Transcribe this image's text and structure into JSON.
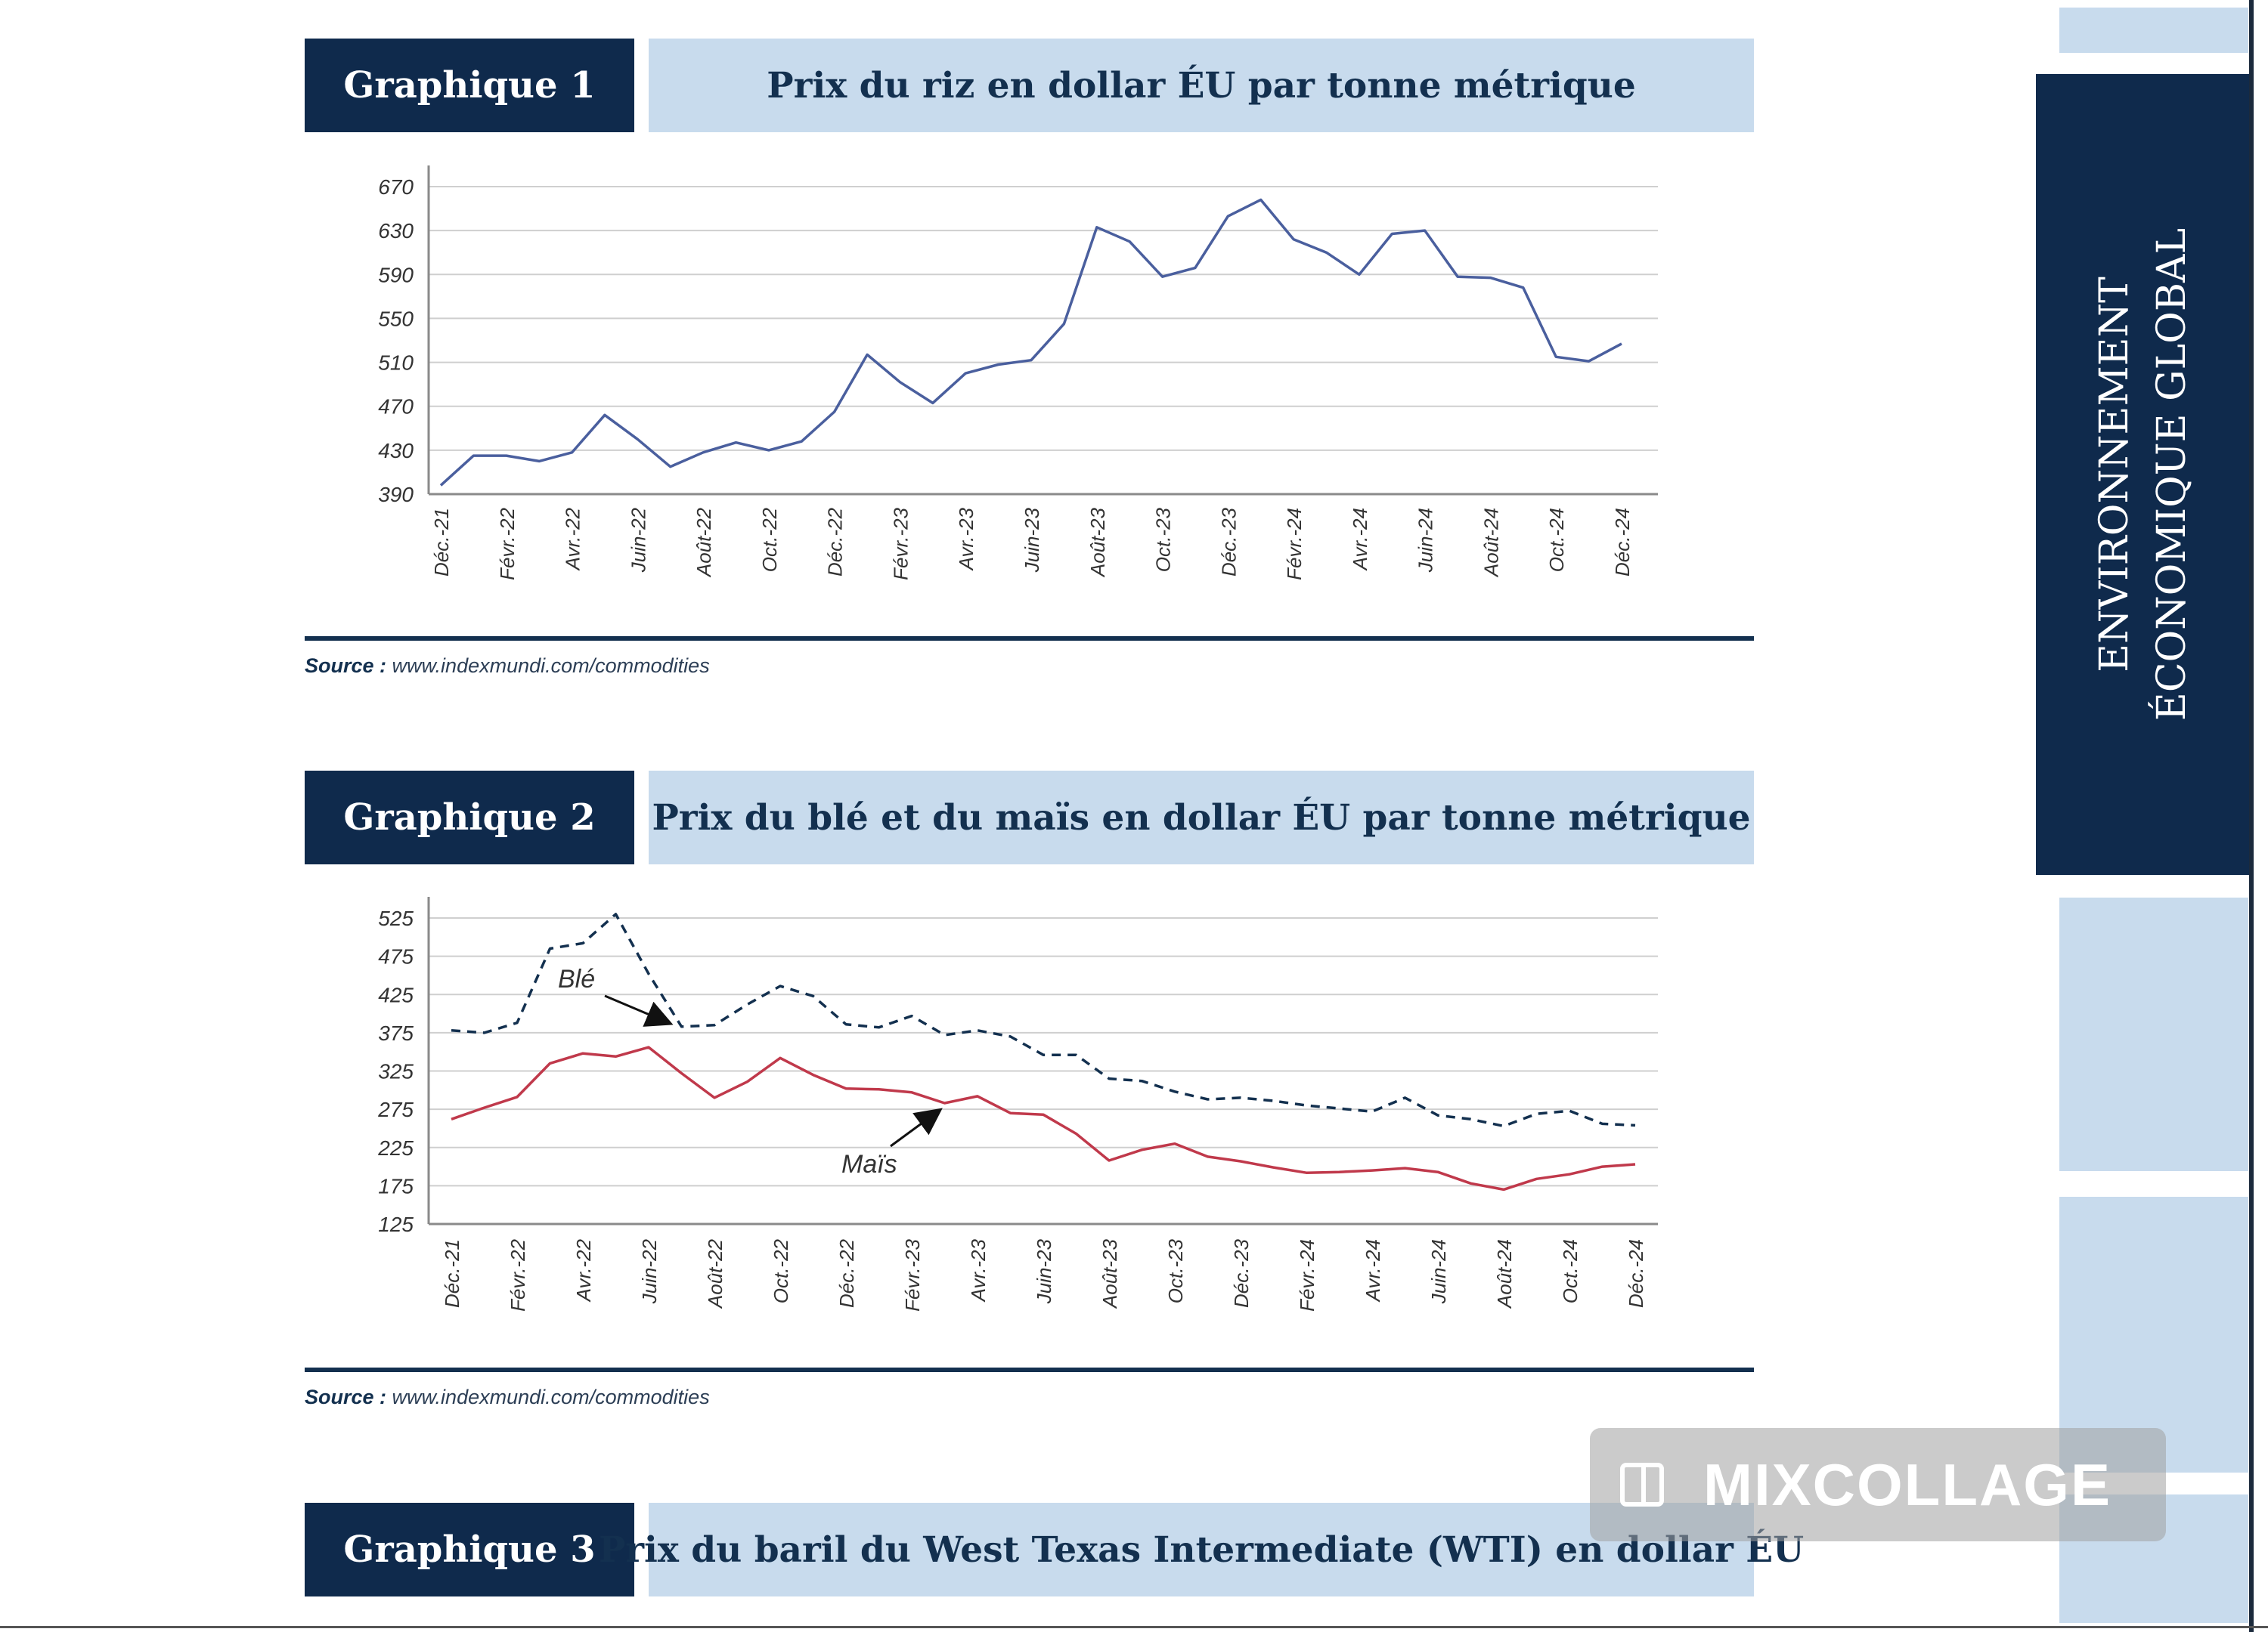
{
  "graphs": [
    {
      "label": "Graphique 1",
      "title": "Prix du riz en dollar ÉU par tonne métrique"
    },
    {
      "label": "Graphique 2",
      "title": "Prix du blé et du maïs en dollar ÉU par tonne métrique"
    },
    {
      "label": "Graphique 3",
      "title": "Prix du baril du West Texas Intermediate (WTI) en dollar ÉU"
    }
  ],
  "source": {
    "label": "Source :",
    "url": "www.indexmundi.com/commodities"
  },
  "sidebar": {
    "line1": "ENVIRONNEMENT",
    "line2": "ÉCONOMIQUE GLOBAL"
  },
  "watermark": {
    "text": "MIXCOLLAGE"
  },
  "chart_data": [
    {
      "type": "line",
      "title": "Prix du riz en dollar ÉU par tonne métrique",
      "x_tick_labels": [
        "Déc.-21",
        "Févr.-22",
        "Avr.-22",
        "Juin-22",
        "Août-22",
        "Oct.-22",
        "Déc.-22",
        "Févr.-23",
        "Avr.-23",
        "Juin-23",
        "Août-23",
        "Oct.-23",
        "Déc.-23",
        "Févr.-24",
        "Avr.-24",
        "Juin-24",
        "Août-24",
        "Oct.-24",
        "Déc.-24"
      ],
      "y_ticks": [
        390,
        430,
        470,
        510,
        550,
        590,
        630,
        670
      ],
      "ylim": [
        390,
        670
      ],
      "grid": true,
      "series": [
        {
          "color": "#4a5f9e",
          "dash": false,
          "values": [
            398,
            425,
            425,
            420,
            428,
            462,
            440,
            415,
            428,
            437,
            430,
            438,
            465,
            517,
            492,
            473,
            500,
            508,
            512,
            545,
            633,
            620,
            588,
            596,
            643,
            658,
            622,
            610,
            590,
            627,
            630,
            588,
            587,
            578,
            515,
            511,
            527
          ]
        }
      ]
    },
    {
      "type": "line",
      "title": "Prix du blé et du maïs en dollar ÉU par tonne métrique",
      "x_tick_labels": [
        "Déc.-21",
        "Févr.-22",
        "Avr.-22",
        "Juin-22",
        "Août-22",
        "Oct.-22",
        "Déc.-22",
        "Févr.-23",
        "Avr.-23",
        "Juin-23",
        "Août-23",
        "Oct.-23",
        "Déc.-23",
        "Févr.-24",
        "Avr.-24",
        "Juin-24",
        "Août-24",
        "Oct.-24",
        "Déc.-24"
      ],
      "y_ticks": [
        125,
        175,
        225,
        275,
        325,
        375,
        425,
        475,
        525
      ],
      "ylim": [
        125,
        525
      ],
      "grid": true,
      "annotations": [
        "Blé",
        "Maïs"
      ],
      "series": [
        {
          "name": "Blé",
          "color": "#13304f",
          "dash": true,
          "values": [
            378,
            375,
            388,
            485,
            492,
            530,
            452,
            383,
            385,
            412,
            436,
            423,
            386,
            382,
            397,
            372,
            378,
            370,
            346,
            346,
            315,
            312,
            298,
            288,
            290,
            286,
            280,
            276,
            272,
            290,
            267,
            262,
            253,
            269,
            273,
            256,
            254
          ]
        },
        {
          "name": "Maïs",
          "color": "#c0394b",
          "dash": false,
          "values": [
            262,
            277,
            291,
            335,
            348,
            344,
            356,
            322,
            290,
            311,
            342,
            320,
            302,
            301,
            297,
            283,
            292,
            270,
            268,
            243,
            208,
            222,
            230,
            213,
            207,
            199,
            192,
            193,
            195,
            198,
            193,
            178,
            170,
            184,
            190,
            200,
            203
          ]
        }
      ]
    }
  ]
}
